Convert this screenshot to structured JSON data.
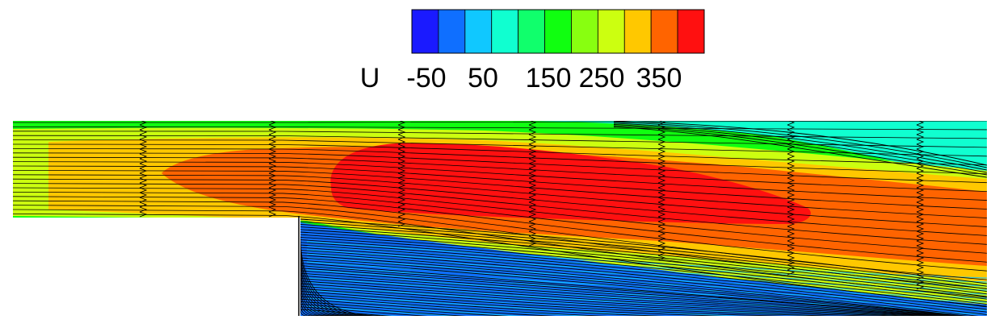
{
  "legend": {
    "variable": "U",
    "tick_labels": [
      "-50",
      "50",
      "150",
      "250",
      "350"
    ],
    "colors": [
      "#1a1aff",
      "#0f6fff",
      "#10c8ff",
      "#10ffd0",
      "#10ff6c",
      "#10ff10",
      "#88ff10",
      "#ccff10",
      "#ffc800",
      "#ff6400",
      "#ff1010"
    ]
  },
  "plot": {
    "colors": {
      "dark_red": "#ff1010",
      "orange": "#ff6400",
      "amber": "#ffc800",
      "yellow_green": "#ccff10",
      "lime": "#88ff10",
      "green": "#10ff10",
      "spring_green": "#10ff6c",
      "aqua": "#10ffd0",
      "cyan": "#10c8ff",
      "azure": "#0f6fff",
      "streamline": "#000000"
    }
  }
}
